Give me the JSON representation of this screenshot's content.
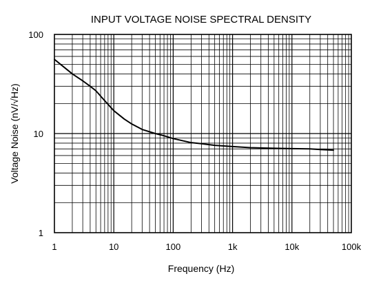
{
  "chart_data": {
    "type": "line",
    "title": "INPUT VOLTAGE NOISE SPECTRAL DENSITY",
    "xlabel": "Frequency (Hz)",
    "ylabel": "Voltage Noise (nV/√Hz)",
    "x_scale": "log",
    "y_scale": "log",
    "xlim": [
      1,
      100000
    ],
    "ylim": [
      1,
      100
    ],
    "grid": true,
    "x_ticks": [
      {
        "value": 1,
        "label": "1"
      },
      {
        "value": 10,
        "label": "10"
      },
      {
        "value": 100,
        "label": "100"
      },
      {
        "value": 1000,
        "label": "1k"
      },
      {
        "value": 10000,
        "label": "10k"
      },
      {
        "value": 100000,
        "label": "100k"
      }
    ],
    "y_ticks": [
      {
        "value": 1,
        "label": "1"
      },
      {
        "value": 10,
        "label": "10"
      },
      {
        "value": 100,
        "label": "100"
      }
    ],
    "series": [
      {
        "x": [
          1,
          1.5,
          2,
          3,
          4,
          5,
          7,
          10,
          15,
          20,
          30,
          50,
          70,
          100,
          200,
          300,
          500,
          1000,
          2000,
          5000,
          10000,
          20000,
          30000,
          50000
        ],
        "y": [
          56,
          46,
          40,
          34,
          30,
          27,
          21.5,
          17,
          14,
          12.5,
          11,
          10,
          9.5,
          8.9,
          8.1,
          7.9,
          7.6,
          7.4,
          7.2,
          7.1,
          7.05,
          7.0,
          6.9,
          6.8
        ]
      }
    ],
    "colors": {
      "line": "#000000",
      "grid": "#000000",
      "background": "#ffffff"
    }
  }
}
